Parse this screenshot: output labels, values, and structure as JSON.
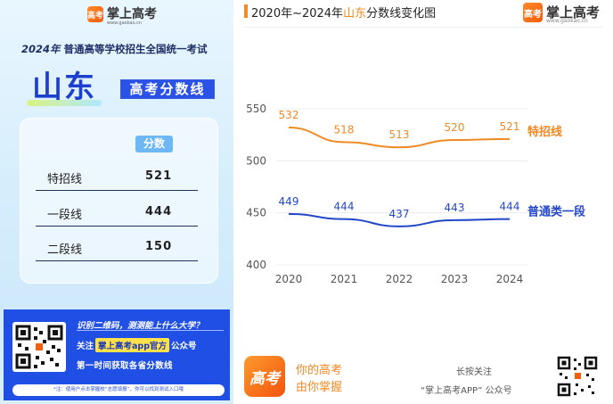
{
  "left": {
    "brand": "掌上高考",
    "brand_logo_text": "高考",
    "brand_url": "www.gaokao.cn",
    "exam_year": "2024年",
    "exam_title": "普通高等学校招生全国统一考试",
    "province": "山东",
    "tag": "高考分数线",
    "table": {
      "header": "分数",
      "rows": [
        {
          "label": "特招线",
          "value": "521"
        },
        {
          "label": "一段线",
          "value": "444"
        },
        {
          "label": "二段线",
          "value": "150"
        }
      ]
    },
    "promo": {
      "line1": "识别二维码，测测能上什么大学？",
      "line2_prefix": "关注",
      "line2_pill": "掌上高考app官方",
      "line2_suffix": "公众号",
      "line3": "第一时间获取各省分数线",
      "note": "*注：使用户点击掌握校“志愿填报”，你可以找到测试入口哦"
    }
  },
  "right": {
    "title_prefix": "2020年~2024年",
    "title_highlight": "山东",
    "title_suffix": "分数线变化图",
    "brand": "掌上高考",
    "brand_logo_text": "高考",
    "brand_url": "www.gaokao.cn",
    "footer": {
      "logo_text": "高考",
      "slogan1": "你的高考",
      "slogan2": "由你掌握",
      "hint1": "长按关注",
      "hint2": "“掌上高考APP” 公众号"
    }
  },
  "colors": {
    "orange": "#f08a24",
    "blue": "#2347c8",
    "accent_blue": "#1f4fe5"
  },
  "chart_data": {
    "type": "line",
    "x": [
      "2020",
      "2021",
      "2022",
      "2023",
      "2024"
    ],
    "ylim": [
      400,
      550
    ],
    "yticks": [
      "400",
      "450",
      "500",
      "550"
    ],
    "series": [
      {
        "name": "特招线",
        "values": [
          532,
          518,
          513,
          520,
          521
        ],
        "color": "#f08a24"
      },
      {
        "name": "普通类一段",
        "values": [
          449,
          444,
          437,
          443,
          444
        ],
        "color": "#2347c8"
      }
    ],
    "grid": true,
    "legend": "right-end labels"
  }
}
